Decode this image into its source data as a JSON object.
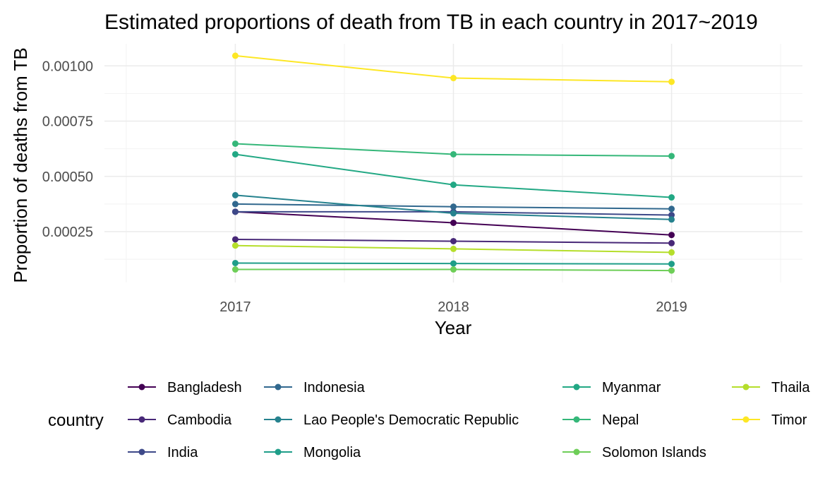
{
  "chart_data": {
    "type": "line",
    "title": "Estimated proportions of death from TB in each country in 2017~2019",
    "xlabel": "Year",
    "ylabel": "Proportion of deaths from TB",
    "x": [
      2017,
      2018,
      2019
    ],
    "xlim": [
      2016.4,
      2019.6
    ],
    "ylim": [
      2e-05,
      0.0011
    ],
    "y_ticks": [
      0.00025,
      0.0005,
      0.00075,
      0.001
    ],
    "y_tick_labels": [
      "0.00025",
      "0.00050",
      "0.00075",
      "0.00100"
    ],
    "x_tick_labels": [
      "2017",
      "2018",
      "2019"
    ],
    "grid": true,
    "legend_title": "country",
    "legend_position": "bottom",
    "series": [
      {
        "name": "Bangladesh",
        "color": "#440154",
        "values": [
          0.00034,
          0.00029,
          0.000235
        ]
      },
      {
        "name": "Cambodia",
        "color": "#482878",
        "values": [
          0.000215,
          0.000207,
          0.000198
        ]
      },
      {
        "name": "India",
        "color": "#3e4989",
        "values": [
          0.00034,
          0.00034,
          0.000325
        ]
      },
      {
        "name": "Indonesia",
        "color": "#31688e",
        "values": [
          0.000375,
          0.000363,
          0.000353
        ]
      },
      {
        "name": "Lao People's Democratic Republic",
        "color": "#26828e",
        "values": [
          0.000415,
          0.000333,
          0.000305
        ]
      },
      {
        "name": "Mongolia",
        "color": "#1f9e89",
        "values": [
          0.000108,
          0.000106,
          0.000104
        ]
      },
      {
        "name": "Myanmar",
        "color": "#22a884",
        "values": [
          0.0006,
          0.000462,
          0.000405
        ]
      },
      {
        "name": "Nepal",
        "color": "#35b779",
        "values": [
          0.000648,
          0.0006,
          0.000592
        ]
      },
      {
        "name": "Solomon Islands",
        "color": "#6ece58",
        "values": [
          7.9e-05,
          7.9e-05,
          7.4e-05
        ]
      },
      {
        "name": "Thailand",
        "color": "#b5de2b",
        "values": [
          0.000187,
          0.000172,
          0.000156
        ]
      },
      {
        "name": "Timor-Leste",
        "color": "#fde725",
        "values": [
          0.001046,
          0.000945,
          0.000928
        ]
      }
    ],
    "legend_labels_visible": [
      "Bangladesh",
      "Cambodia",
      "India",
      "Indonesia",
      "Lao People's Democratic Republic",
      "Mongolia",
      "Myanmar",
      "Nepal",
      "Solomon Islands",
      "Thaila",
      "Timor"
    ]
  }
}
